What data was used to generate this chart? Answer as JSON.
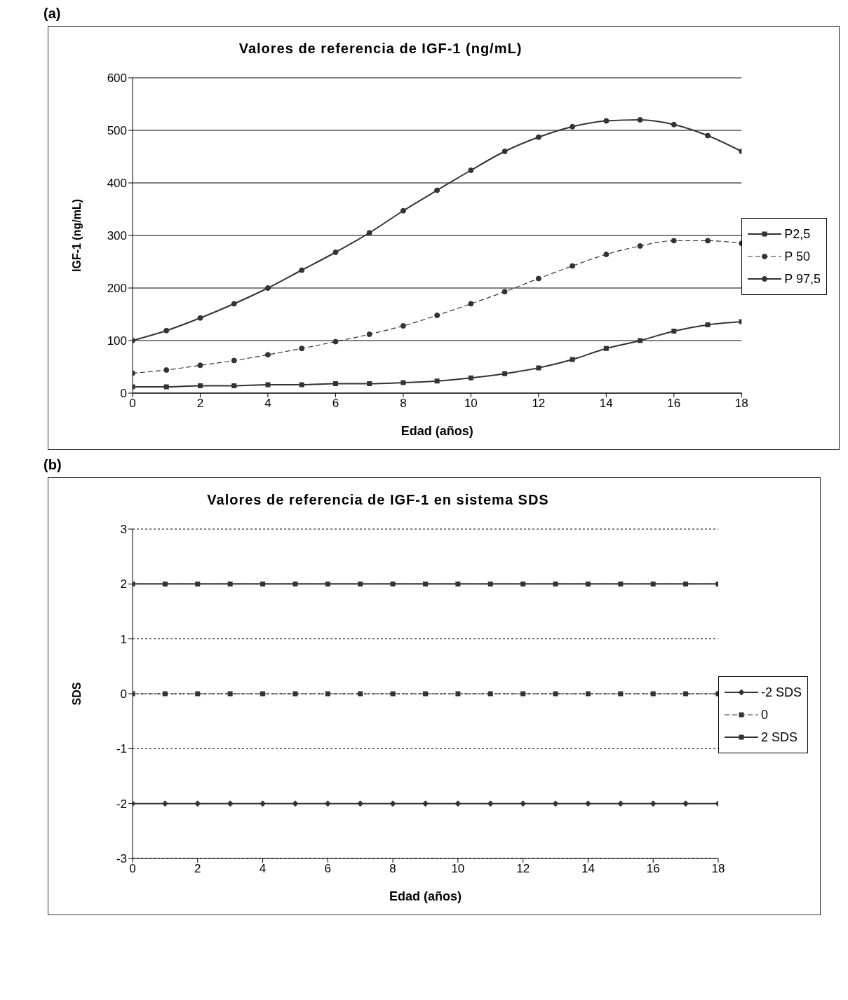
{
  "chart_data": [
    {
      "type": "line",
      "title": "Valores de referencia de IGF-1 (ng/mL)",
      "xlabel": "Edad (años)",
      "ylabel": "IGF-1 (ng/mL)",
      "annotations": [
        "(a)"
      ],
      "x": [
        0,
        1,
        2,
        3,
        4,
        5,
        6,
        7,
        8,
        9,
        10,
        11,
        12,
        13,
        14,
        15,
        16,
        17,
        18
      ],
      "xlim": [
        0,
        18
      ],
      "xticks": [
        0,
        2,
        4,
        6,
        8,
        10,
        12,
        14,
        16,
        18
      ],
      "ylim": [
        0,
        600
      ],
      "yticks": [
        0,
        100,
        200,
        300,
        400,
        500,
        600
      ],
      "grid": "y",
      "legend": "right",
      "series": [
        {
          "name": "P2,5",
          "color": "#333333",
          "marker": "square",
          "line_style": "solid",
          "values": [
            12,
            12,
            14,
            14,
            16,
            16,
            18,
            18,
            20,
            23,
            29,
            37,
            48,
            64,
            85,
            100,
            118,
            130,
            136
          ]
        },
        {
          "name": "P 50",
          "color": "#333333",
          "marker": "circle",
          "line_style": "dashed",
          "values": [
            38,
            44,
            53,
            62,
            73,
            85,
            98,
            112,
            128,
            148,
            170,
            193,
            218,
            242,
            264,
            280,
            290,
            290,
            285
          ]
        },
        {
          "name": "P 97,5",
          "color": "#333333",
          "marker": "circle",
          "line_style": "solid",
          "values": [
            100,
            119,
            143,
            170,
            200,
            234,
            268,
            305,
            347,
            386,
            424,
            460,
            487,
            507,
            518,
            520,
            511,
            490,
            460
          ]
        }
      ]
    },
    {
      "type": "line",
      "title": "Valores de referencia de IGF-1 en sistema SDS",
      "xlabel": "Edad (años)",
      "ylabel": "SDS",
      "annotations": [
        "(b)"
      ],
      "x": [
        0,
        1,
        2,
        3,
        4,
        5,
        6,
        7,
        8,
        9,
        10,
        11,
        12,
        13,
        14,
        15,
        16,
        17,
        18
      ],
      "xlim": [
        0,
        18
      ],
      "xticks": [
        0,
        2,
        4,
        6,
        8,
        10,
        12,
        14,
        16,
        18
      ],
      "ylim": [
        -3,
        3
      ],
      "yticks": [
        -3,
        -2,
        -1,
        0,
        1,
        2,
        3
      ],
      "grid": "y",
      "legend": "right",
      "series": [
        {
          "name": "-2 SDS",
          "color": "#333333",
          "marker": "diamond",
          "line_style": "solid",
          "values": [
            -2,
            -2,
            -2,
            -2,
            -2,
            -2,
            -2,
            -2,
            -2,
            -2,
            -2,
            -2,
            -2,
            -2,
            -2,
            -2,
            -2,
            -2,
            -2
          ]
        },
        {
          "name": "0",
          "color": "#333333",
          "marker": "square",
          "line_style": "dashed",
          "values": [
            0,
            0,
            0,
            0,
            0,
            0,
            0,
            0,
            0,
            0,
            0,
            0,
            0,
            0,
            0,
            0,
            0,
            0,
            0
          ]
        },
        {
          "name": "2 SDS",
          "color": "#333333",
          "marker": "square",
          "line_style": "solid",
          "values": [
            2,
            2,
            2,
            2,
            2,
            2,
            2,
            2,
            2,
            2,
            2,
            2,
            2,
            2,
            2,
            2,
            2,
            2,
            2
          ]
        }
      ]
    }
  ]
}
